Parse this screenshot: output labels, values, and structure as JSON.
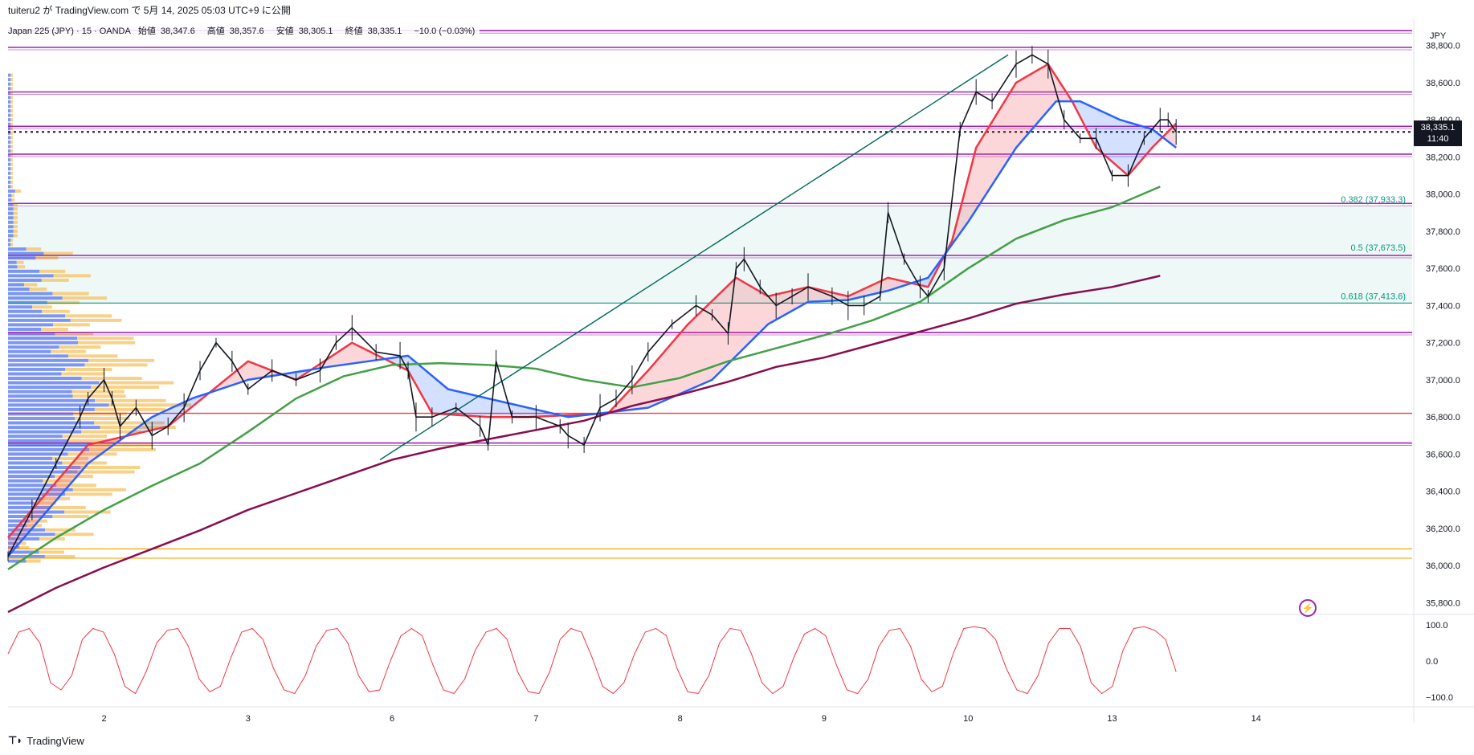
{
  "header": {
    "publish_text": "tuiteru2 が TradingView.com で 5月 14, 2025 05:03 UTC+9 に公開",
    "symbol_desc": "Japan 225 (JPY) · 15 · OANDA",
    "ohlc": [
      {
        "label": "始値",
        "value": "38,347.6"
      },
      {
        "label": "高値",
        "value": "38,357.6"
      },
      {
        "label": "安値",
        "value": "38,305.1"
      },
      {
        "label": "終値",
        "value": "38,335.1"
      }
    ],
    "change": "−10.0 (−0.03%)",
    "currency": "JPY"
  },
  "last_price": {
    "value": "38,335.1",
    "countdown": "11:40"
  },
  "footer": {
    "brand": "TradingView"
  },
  "colors": {
    "candle": "#131722",
    "ema_fast": "#f23645",
    "ema_mid": "#2962ff",
    "ma_green": "#43a047",
    "ma_maroon": "#880e4f",
    "purple_line": "#9c27b0",
    "fib_teal": "#089981",
    "red_line": "#f23645",
    "orange_line": "#f7a600",
    "vp_blue": "#5b7cf0",
    "vp_orange": "#f5c66a"
  },
  "chart_data": {
    "type": "line",
    "title": "Japan 225 (JPY) · 15 · OANDA",
    "ylim": [
      35750,
      38950
    ],
    "x_categories": [
      "2",
      "3",
      "6",
      "7",
      "8",
      "9",
      "10",
      "13",
      "14"
    ],
    "y_ticks": [
      "38,800.0",
      "38,600.0",
      "38,400.0",
      "38,200.0",
      "38,000.0",
      "37,800.0",
      "37,600.0",
      "37,400.0",
      "37,200.0",
      "37,000.0",
      "36,800.0",
      "36,600.0",
      "36,400.0",
      "36,200.0",
      "36,000.0",
      "35,800.0"
    ],
    "y_tick_values": [
      38800,
      38600,
      38400,
      38200,
      38000,
      37800,
      37600,
      37400,
      37200,
      37000,
      36800,
      36600,
      36400,
      36200,
      36000,
      35800
    ],
    "price_series": [
      [
        0.0,
        36050
      ],
      [
        0.3,
        36300
      ],
      [
        0.6,
        36550
      ],
      [
        0.9,
        36800
      ],
      [
        1.0,
        36900
      ],
      [
        1.2,
        37000
      ],
      [
        1.3,
        36900
      ],
      [
        1.4,
        36750
      ],
      [
        1.6,
        36850
      ],
      [
        1.8,
        36700
      ],
      [
        2.0,
        36750
      ],
      [
        2.2,
        36850
      ],
      [
        2.4,
        37050
      ],
      [
        2.6,
        37200
      ],
      [
        2.8,
        37100
      ],
      [
        3.0,
        36950
      ],
      [
        3.3,
        37050
      ],
      [
        3.6,
        37000
      ],
      [
        3.9,
        37050
      ],
      [
        4.1,
        37200
      ],
      [
        4.3,
        37280
      ],
      [
        4.6,
        37150
      ],
      [
        4.9,
        37130
      ],
      [
        5.0,
        37050
      ],
      [
        5.1,
        36800
      ],
      [
        5.3,
        36800
      ],
      [
        5.6,
        36850
      ],
      [
        5.9,
        36750
      ],
      [
        6.0,
        36650
      ],
      [
        6.1,
        37100
      ],
      [
        6.3,
        36800
      ],
      [
        6.6,
        36800
      ],
      [
        6.9,
        36750
      ],
      [
        7.0,
        36700
      ],
      [
        7.2,
        36650
      ],
      [
        7.4,
        36850
      ],
      [
        7.6,
        36900
      ],
      [
        7.8,
        37000
      ],
      [
        8.0,
        37150
      ],
      [
        8.3,
        37300
      ],
      [
        8.6,
        37400
      ],
      [
        8.8,
        37350
      ],
      [
        9.0,
        37250
      ],
      [
        9.1,
        37600
      ],
      [
        9.2,
        37650
      ],
      [
        9.4,
        37500
      ],
      [
        9.6,
        37400
      ],
      [
        9.8,
        37450
      ],
      [
        10.0,
        37500
      ],
      [
        10.3,
        37450
      ],
      [
        10.5,
        37400
      ],
      [
        10.7,
        37400
      ],
      [
        10.9,
        37450
      ],
      [
        11.0,
        37900
      ],
      [
        11.2,
        37650
      ],
      [
        11.4,
        37500
      ],
      [
        11.5,
        37450
      ],
      [
        11.7,
        37600
      ],
      [
        11.9,
        38350
      ],
      [
        12.1,
        38550
      ],
      [
        12.3,
        38500
      ],
      [
        12.6,
        38700
      ],
      [
        12.8,
        38750
      ],
      [
        13.0,
        38700
      ],
      [
        13.2,
        38400
      ],
      [
        13.4,
        38300
      ],
      [
        13.6,
        38300
      ],
      [
        13.8,
        38100
      ],
      [
        14.0,
        38100
      ],
      [
        14.2,
        38300
      ],
      [
        14.4,
        38400
      ],
      [
        14.5,
        38400
      ],
      [
        14.6,
        38335
      ]
    ],
    "series": [
      {
        "name": "",
        "type": "ema_fast",
        "points": [
          [
            0.0,
            36150
          ],
          [
            1.0,
            36650
          ],
          [
            2.0,
            36750
          ],
          [
            3.0,
            37100
          ],
          [
            3.6,
            37000
          ],
          [
            4.3,
            37200
          ],
          [
            5.0,
            37050
          ],
          [
            5.3,
            36820
          ],
          [
            6.0,
            36800
          ],
          [
            6.5,
            36800
          ],
          [
            7.5,
            36820
          ],
          [
            8.0,
            37050
          ],
          [
            8.5,
            37300
          ],
          [
            9.1,
            37550
          ],
          [
            9.5,
            37450
          ],
          [
            10.0,
            37500
          ],
          [
            10.5,
            37450
          ],
          [
            11.0,
            37550
          ],
          [
            11.5,
            37500
          ],
          [
            11.8,
            37750
          ],
          [
            12.1,
            38250
          ],
          [
            12.6,
            38600
          ],
          [
            13.0,
            38700
          ],
          [
            13.3,
            38500
          ],
          [
            13.6,
            38250
          ],
          [
            14.0,
            38100
          ],
          [
            14.3,
            38250
          ],
          [
            14.6,
            38380
          ]
        ]
      },
      {
        "name": "",
        "type": "ema_mid",
        "points": [
          [
            0.0,
            36050
          ],
          [
            1.0,
            36550
          ],
          [
            1.8,
            36800
          ],
          [
            2.3,
            36900
          ],
          [
            3.0,
            37000
          ],
          [
            4.0,
            37070
          ],
          [
            5.0,
            37130
          ],
          [
            5.5,
            36950
          ],
          [
            6.0,
            36900
          ],
          [
            7.0,
            36800
          ],
          [
            8.0,
            36850
          ],
          [
            8.8,
            37000
          ],
          [
            9.5,
            37300
          ],
          [
            10.0,
            37420
          ],
          [
            10.5,
            37430
          ],
          [
            11.0,
            37480
          ],
          [
            11.5,
            37550
          ],
          [
            12.0,
            37850
          ],
          [
            12.6,
            38250
          ],
          [
            13.1,
            38500
          ],
          [
            13.4,
            38500
          ],
          [
            13.9,
            38400
          ],
          [
            14.3,
            38350
          ],
          [
            14.6,
            38250
          ]
        ]
      },
      {
        "name": "",
        "type": "ma_green",
        "points": [
          [
            0.0,
            35980
          ],
          [
            0.6,
            36150
          ],
          [
            1.2,
            36300
          ],
          [
            1.8,
            36430
          ],
          [
            2.4,
            36550
          ],
          [
            3.0,
            36720
          ],
          [
            3.6,
            36900
          ],
          [
            4.2,
            37020
          ],
          [
            4.8,
            37080
          ],
          [
            5.4,
            37090
          ],
          [
            6.0,
            37080
          ],
          [
            6.6,
            37060
          ],
          [
            7.2,
            37000
          ],
          [
            7.8,
            36960
          ],
          [
            8.4,
            37010
          ],
          [
            9.0,
            37100
          ],
          [
            9.6,
            37170
          ],
          [
            10.2,
            37240
          ],
          [
            10.8,
            37320
          ],
          [
            11.4,
            37420
          ],
          [
            12.0,
            37600
          ],
          [
            12.6,
            37760
          ],
          [
            13.2,
            37860
          ],
          [
            13.8,
            37930
          ],
          [
            14.4,
            38040
          ]
        ]
      },
      {
        "name": "",
        "type": "ma_maroon",
        "points": [
          [
            0.0,
            35750
          ],
          [
            0.6,
            35880
          ],
          [
            1.2,
            35990
          ],
          [
            1.8,
            36090
          ],
          [
            2.4,
            36190
          ],
          [
            3.0,
            36300
          ],
          [
            3.6,
            36390
          ],
          [
            4.2,
            36480
          ],
          [
            4.8,
            36570
          ],
          [
            5.4,
            36630
          ],
          [
            6.0,
            36680
          ],
          [
            6.6,
            36730
          ],
          [
            7.2,
            36780
          ],
          [
            7.8,
            36860
          ],
          [
            8.4,
            36920
          ],
          [
            9.0,
            36990
          ],
          [
            9.6,
            37070
          ],
          [
            10.2,
            37120
          ],
          [
            10.8,
            37190
          ],
          [
            11.4,
            37260
          ],
          [
            12.0,
            37330
          ],
          [
            12.6,
            37410
          ],
          [
            13.2,
            37460
          ],
          [
            13.8,
            37500
          ],
          [
            14.4,
            37560
          ]
        ]
      }
    ],
    "horizontal_lines": [
      {
        "price": 38880,
        "kind": "purple"
      },
      {
        "price": 38790,
        "kind": "purple"
      },
      {
        "price": 38550,
        "kind": "purple"
      },
      {
        "price": 38365,
        "kind": "purple"
      },
      {
        "price": 38215,
        "kind": "purple"
      },
      {
        "price": 37950,
        "kind": "purple"
      },
      {
        "price": 37670,
        "kind": "purple"
      },
      {
        "price": 37255,
        "kind": "purple"
      },
      {
        "price": 36660,
        "kind": "purple"
      },
      {
        "price": 36820,
        "kind": "red"
      },
      {
        "price": 36090,
        "kind": "orange"
      },
      {
        "price": 36040,
        "kind": "orange"
      },
      {
        "price": 37413.6,
        "kind": "teal"
      }
    ],
    "fib_levels": [
      {
        "label": "0.382 (37,933.3)",
        "price": 37933.3
      },
      {
        "label": "0.5 (37,673.5)",
        "price": 37673.5
      },
      {
        "label": "0.618 (37,413.6)",
        "price": 37413.6
      }
    ],
    "trendline": {
      "from": [
        4.65,
        36570
      ],
      "to": [
        12.5,
        38750
      ]
    },
    "oscillator": {
      "ticks": [
        "100.0",
        "0.0",
        "−100.0"
      ],
      "tick_values": [
        100,
        0,
        -100
      ],
      "values": [
        20,
        80,
        90,
        50,
        -60,
        -80,
        -40,
        60,
        90,
        80,
        20,
        -70,
        -90,
        -30,
        50,
        85,
        90,
        40,
        -50,
        -85,
        -70,
        10,
        80,
        90,
        60,
        -20,
        -80,
        -90,
        -40,
        40,
        85,
        90,
        50,
        -40,
        -85,
        -80,
        0,
        70,
        90,
        70,
        -10,
        -80,
        -90,
        -50,
        30,
        80,
        90,
        60,
        -30,
        -85,
        -90,
        -30,
        60,
        90,
        80,
        10,
        -70,
        -90,
        -60,
        20,
        80,
        90,
        70,
        -20,
        -85,
        -90,
        -40,
        50,
        90,
        85,
        20,
        -60,
        -90,
        -70,
        10,
        75,
        90,
        70,
        -10,
        -80,
        -90,
        -50,
        40,
        85,
        90,
        40,
        -50,
        -85,
        -70,
        20,
        90,
        95,
        90,
        60,
        -20,
        -80,
        -90,
        -40,
        50,
        90,
        90,
        40,
        -60,
        -90,
        -70,
        30,
        90,
        95,
        85,
        60,
        -30
      ]
    }
  }
}
